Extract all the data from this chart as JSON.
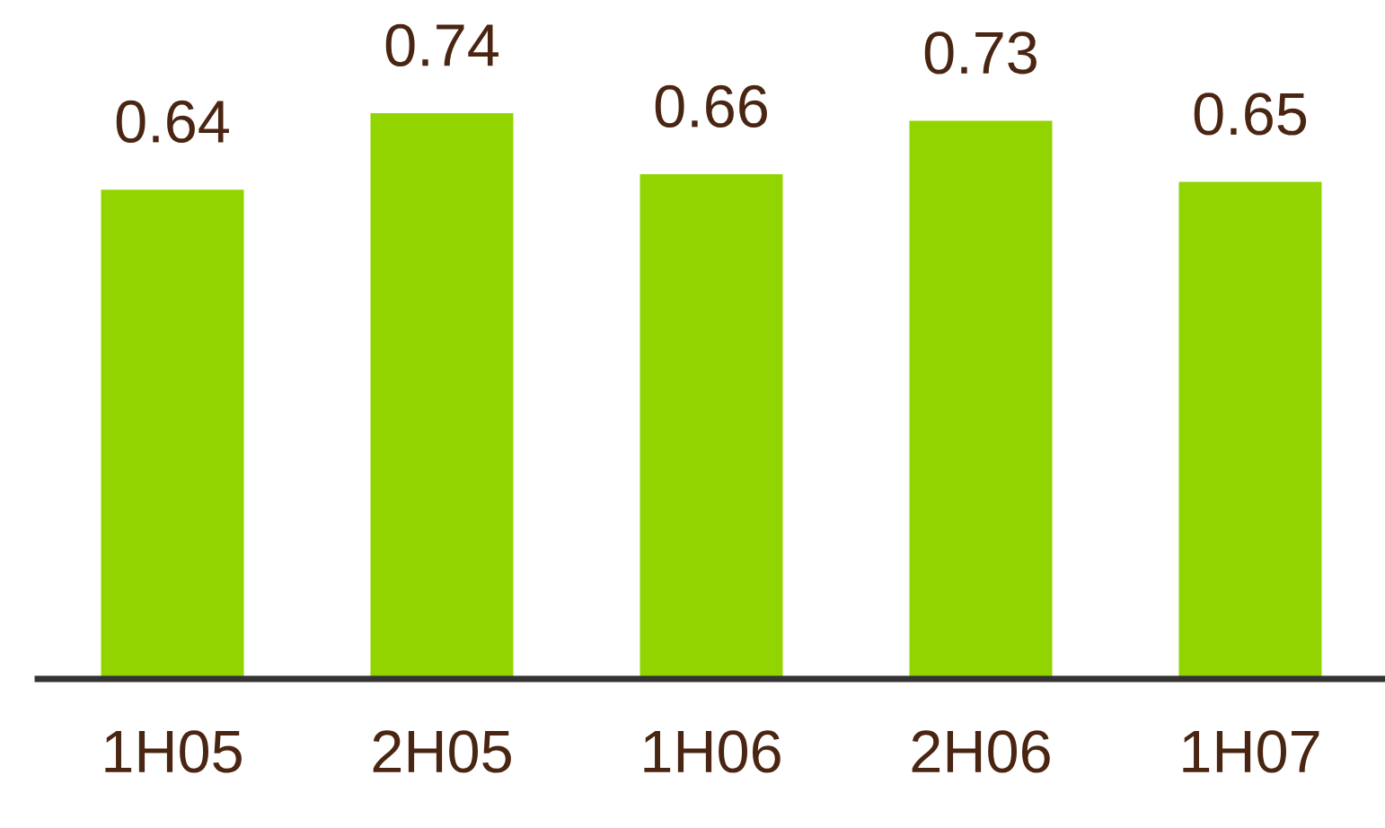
{
  "chart_data": {
    "type": "bar",
    "categories": [
      "1H05",
      "2H05",
      "1H06",
      "2H06",
      "1H07"
    ],
    "values": [
      0.64,
      0.74,
      0.66,
      0.73,
      0.65
    ],
    "color": "#92d400",
    "tick_labels": "x",
    "data_labels": true,
    "grid": false
  }
}
